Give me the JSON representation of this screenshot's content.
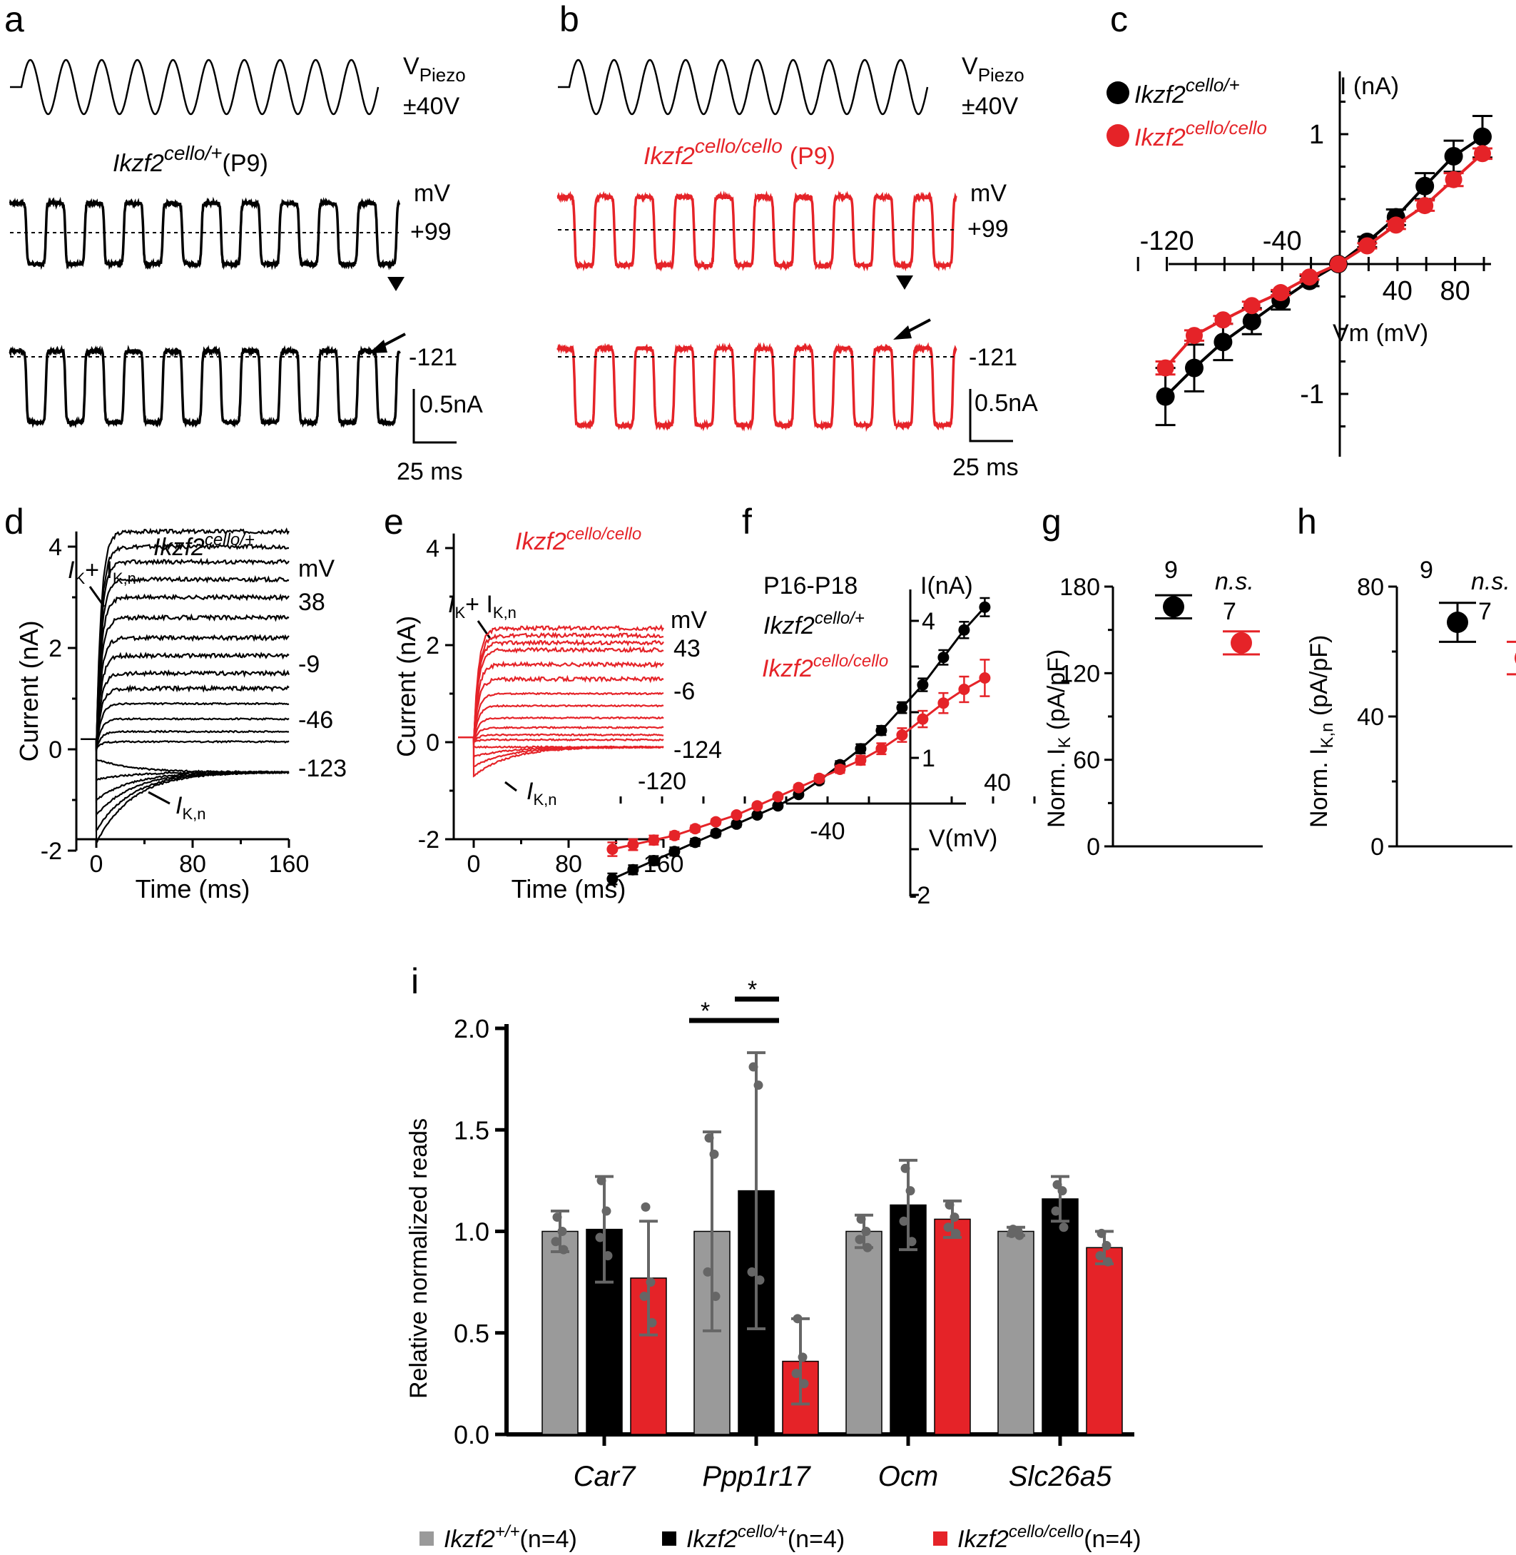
{
  "colors": {
    "black": "#000000",
    "red": "#e52328",
    "grey": "#9a9a9a",
    "bar_grey": "#9a9a9a",
    "bar_black": "#000000",
    "bar_red": "#e52328",
    "point": "#666666"
  },
  "panel_a": {
    "letter": "a",
    "stim_label": "V",
    "stim_sub": "Piezo",
    "stim_amp": "±40V",
    "genotype_base": "Ikzf2",
    "genotype_sup": "cello/+",
    "age": "(P9)",
    "mv_unit": "mV",
    "holding_high": "+99",
    "holding_low": "-121",
    "scale_y": "0.5nA",
    "scale_x": "25 ms"
  },
  "panel_b": {
    "letter": "b",
    "stim_label": "V",
    "stim_sub": "Piezo",
    "stim_amp": "±40V",
    "genotype_base": "Ikzf2",
    "genotype_sup": "cello/cello",
    "age": "(P9)",
    "mv_unit": "mV",
    "holding_high": "+99",
    "holding_low": "-121",
    "scale_y": "0.5nA",
    "scale_x": "25 ms"
  },
  "panel_d": {
    "letter": "d",
    "genotype_base": "Ikzf2",
    "genotype_sup": "cello/+",
    "mv_unit": "mV",
    "arrow_label": "I",
    "arrow_sub1": "K",
    "arrow_plus": "+ I",
    "arrow_sub2": "K,n",
    "tail_label": "I",
    "tail_sub": "K,n",
    "voltages": [
      "38",
      "-9",
      "-46",
      "-123"
    ]
  },
  "panel_e": {
    "letter": "e",
    "genotype_base": "Ikzf2",
    "genotype_sup": "cello/cello",
    "mv_unit": "mV",
    "arrow_label": "I",
    "arrow_sub1": "K",
    "arrow_plus": "+ I",
    "arrow_sub2": "K,n",
    "tail_label": "I",
    "tail_sub": "K,n",
    "voltages": [
      "43",
      "-6",
      "-124"
    ]
  },
  "panel_f": {
    "letter": "f",
    "age_label": "P16-P18",
    "y_label": "I(nA)",
    "x_label": "V(mV)",
    "legend": [
      {
        "base": "Ikzf2",
        "sup": "cello/+"
      },
      {
        "base": "Ikzf2",
        "sup": "cello/cello"
      }
    ]
  },
  "panel_g": {
    "letter": "g",
    "ylabel": "Norm. I",
    "ysub": "K",
    "yunit": " (pA/pF)",
    "n": [
      "9",
      "7"
    ],
    "ns": "n.s."
  },
  "panel_h": {
    "letter": "h",
    "ylabel": "Norm. I",
    "ysub": "K,n",
    "yunit": " (pA/pF)",
    "n": [
      "9",
      "7"
    ],
    "ns": "n.s."
  },
  "panel_i": {
    "letter": "i",
    "sig": [
      "*",
      "*"
    ]
  },
  "chart_data": [
    {
      "id": "c",
      "type": "scatter",
      "title": "",
      "xlabel": "Vm (mV)",
      "ylabel": "I (nA)",
      "xlim": [
        -150,
        100
      ],
      "ylim": [
        -1.45,
        1.35
      ],
      "xticks": [
        -120,
        -40,
        40,
        80
      ],
      "yticks": [
        -1,
        1
      ],
      "legend": [
        {
          "base": "Ikzf2",
          "sup": "cello/+"
        },
        {
          "base": "Ikzf2",
          "sup": "cello/cello"
        }
      ],
      "series": [
        {
          "name": "Ikzf2 cello/+",
          "color": "black",
          "x": [
            -121,
            -101,
            -81,
            -61,
            -41,
            -21,
            -1,
            19,
            39,
            59,
            79,
            99
          ],
          "y": [
            -1.02,
            -0.8,
            -0.6,
            -0.44,
            -0.28,
            -0.13,
            0.0,
            0.17,
            0.36,
            0.6,
            0.83,
            0.98
          ],
          "err": [
            0.22,
            0.18,
            0.14,
            0.1,
            0.07,
            0.04,
            0.0,
            0.04,
            0.06,
            0.1,
            0.12,
            0.16
          ]
        },
        {
          "name": "Ikzf2 cello/cello",
          "color": "red",
          "x": [
            -121,
            -101,
            -81,
            -61,
            -41,
            -21,
            -1,
            19,
            39,
            59,
            79,
            99
          ],
          "y": [
            -0.8,
            -0.55,
            -0.43,
            -0.32,
            -0.22,
            -0.1,
            0.0,
            0.14,
            0.3,
            0.45,
            0.65,
            0.85
          ],
          "err": [
            0.05,
            0.04,
            0.03,
            0.03,
            0.02,
            0.02,
            0.0,
            0.02,
            0.03,
            0.04,
            0.05,
            0.04
          ]
        }
      ]
    },
    {
      "id": "f",
      "type": "scatter",
      "xlabel": "V(mV)",
      "ylabel": "I(nA)",
      "xlim": [
        -150,
        55
      ],
      "ylim": [
        -2.3,
        4.9
      ],
      "xticks": [
        -120,
        -40,
        40
      ],
      "yticks": [
        -2,
        1,
        4
      ],
      "series": [
        {
          "name": "Ikzf2 cello/+",
          "color": "black",
          "x": [
            -144,
            -134,
            -124,
            -114,
            -104,
            -94,
            -84,
            -74,
            -64,
            -54,
            -44,
            -34,
            -24,
            -14,
            -4,
            6,
            16,
            26,
            36
          ],
          "y": [
            -1.65,
            -1.45,
            -1.25,
            -1.05,
            -0.85,
            -0.65,
            -0.45,
            -0.25,
            -0.05,
            0.2,
            0.5,
            0.85,
            1.2,
            1.6,
            2.1,
            2.6,
            3.2,
            3.8,
            4.3
          ],
          "err": [
            0.12,
            0.1,
            0.1,
            0.09,
            0.08,
            0.07,
            0.06,
            0.05,
            0.05,
            0.05,
            0.06,
            0.08,
            0.1,
            0.1,
            0.12,
            0.14,
            0.16,
            0.18,
            0.2
          ]
        },
        {
          "name": "Ikzf2 cello/cello",
          "color": "red",
          "x": [
            -144,
            -134,
            -124,
            -114,
            -104,
            -94,
            -84,
            -74,
            -64,
            -54,
            -44,
            -34,
            -24,
            -14,
            -4,
            6,
            16,
            26,
            36
          ],
          "y": [
            -1.0,
            -0.9,
            -0.8,
            -0.7,
            -0.55,
            -0.4,
            -0.25,
            -0.05,
            0.15,
            0.35,
            0.55,
            0.75,
            0.95,
            1.2,
            1.5,
            1.85,
            2.2,
            2.5,
            2.75
          ],
          "err": [
            0.15,
            0.12,
            0.1,
            0.08,
            0.07,
            0.06,
            0.05,
            0.05,
            0.05,
            0.06,
            0.07,
            0.08,
            0.1,
            0.12,
            0.15,
            0.18,
            0.22,
            0.28,
            0.4
          ]
        }
      ]
    },
    {
      "id": "g",
      "type": "scatter",
      "ylabel": "Norm. IK (pA/pF)",
      "ylim": [
        0,
        180
      ],
      "yticks": [
        0,
        60,
        120,
        180
      ],
      "groups": [
        "Ikzf2 cello/+",
        "Ikzf2 cello/cello"
      ],
      "values": [
        166,
        141
      ],
      "err": [
        8,
        8
      ],
      "n": [
        9,
        7
      ]
    },
    {
      "id": "h",
      "type": "scatter",
      "ylabel": "Norm. IK,n (pA/pF)",
      "ylim": [
        0,
        80
      ],
      "yticks": [
        0,
        40,
        80
      ],
      "groups": [
        "Ikzf2 cello/+",
        "Ikzf2 cello/cello"
      ],
      "values": [
        69,
        58
      ],
      "err": [
        6,
        5
      ],
      "n": [
        9,
        7
      ]
    },
    {
      "id": "i",
      "type": "bar",
      "ylabel": "Relative normalized reads",
      "ylim": [
        0,
        2.0
      ],
      "yticks": [
        "0.0",
        "0.5",
        "1.0",
        "1.5",
        "2.0"
      ],
      "categories": [
        "Car7",
        "Ppp1r17",
        "Ocm",
        "Slc26a5"
      ],
      "series": [
        {
          "name": "Ikzf2",
          "sup": "+/+",
          "n": "(n=4)",
          "color": "grey",
          "values": [
            1.0,
            1.0,
            1.0,
            1.0
          ],
          "sd": [
            0.1,
            0.49,
            0.08,
            0.02
          ],
          "points": [
            [
              1.07,
              1.0,
              0.95,
              0.91
            ],
            [
              1.46,
              1.38,
              0.8,
              0.68
            ],
            [
              1.06,
              1.0,
              0.96,
              0.92
            ],
            [
              1.01,
              1.0,
              0.99,
              0.98
            ]
          ]
        },
        {
          "name": "Ikzf2",
          "sup": "cello/+",
          "n": "(n=4)",
          "color": "black",
          "values": [
            1.01,
            1.2,
            1.13,
            1.16
          ],
          "sd": [
            0.26,
            0.68,
            0.22,
            0.11
          ],
          "points": [
            [
              1.25,
              1.1,
              0.97,
              0.88
            ],
            [
              1.81,
              1.72,
              0.8,
              0.76
            ],
            [
              1.31,
              1.2,
              1.05,
              0.95
            ],
            [
              1.23,
              1.2,
              1.1,
              1.02
            ]
          ]
        },
        {
          "name": "Ikzf2",
          "sup": "cello/cello",
          "n": "(n=4)",
          "color": "red",
          "values": [
            0.77,
            0.36,
            1.06,
            0.92
          ],
          "sd": [
            0.28,
            0.21,
            0.09,
            0.08
          ],
          "points": [
            [
              1.12,
              0.75,
              0.68,
              0.55
            ],
            [
              0.57,
              0.38,
              0.3,
              0.25
            ],
            [
              1.13,
              1.07,
              1.02,
              0.99
            ],
            [
              0.99,
              0.93,
              0.88,
              0.85
            ]
          ]
        }
      ]
    }
  ]
}
